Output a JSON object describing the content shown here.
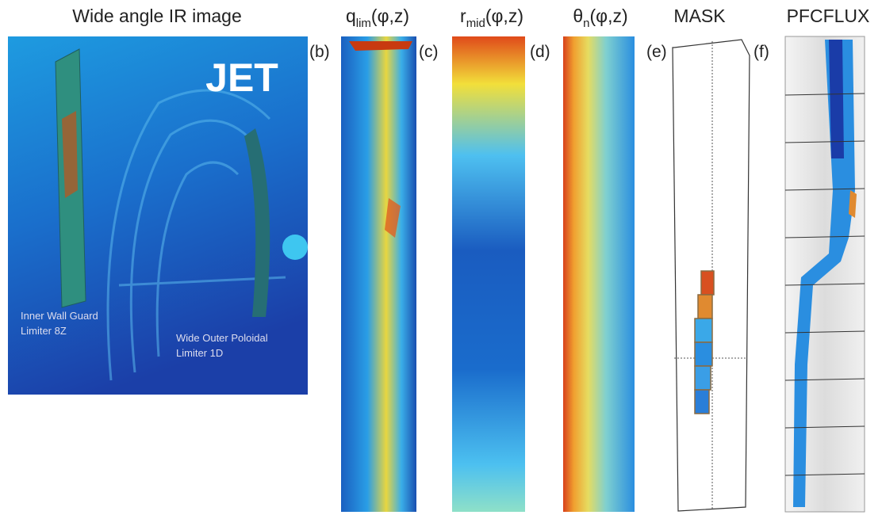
{
  "panel_a": {
    "title": "Wide angle IR image",
    "logo": "JET",
    "label_1": [
      "Inner Wall Guard",
      "Limiter 8Z"
    ],
    "label_2": [
      "Wide Outer Poloidal",
      "Limiter 1D"
    ]
  },
  "panel_b": {
    "letter": "(b)",
    "title": {
      "base": "q",
      "sub": "lim",
      "args": "(φ,z)"
    }
  },
  "panel_c": {
    "letter": "(c)",
    "title": {
      "base": "r",
      "sub": "mid",
      "args": "(φ,z)"
    }
  },
  "panel_d": {
    "letter": "(d)",
    "title": {
      "base": "θ",
      "sub": "n",
      "args": "(φ,z)"
    }
  },
  "panel_e": {
    "letter": "(e)",
    "title": "MASK"
  },
  "panel_f": {
    "letter": "(f)",
    "title": "PFCFLUX"
  }
}
